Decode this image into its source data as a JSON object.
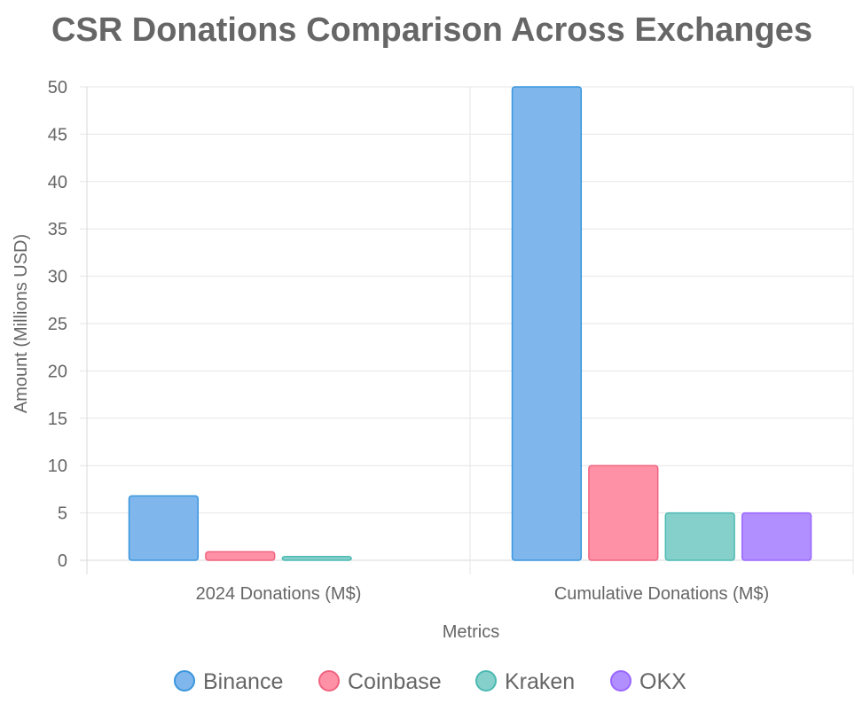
{
  "chart_data": {
    "type": "bar",
    "title": "CSR Donations Comparison Across Exchanges",
    "xlabel": "Metrics",
    "ylabel": "Amount (Millions USD)",
    "categories": [
      "2024 Donations (M$)",
      "Cumulative Donations (M$)"
    ],
    "ylim": [
      0,
      50
    ],
    "yticks": [
      0,
      5,
      10,
      15,
      20,
      25,
      30,
      35,
      40,
      45,
      50
    ],
    "grid": true,
    "legend_position": "bottom",
    "series": [
      {
        "name": "Binance",
        "values": [
          6.8,
          50
        ],
        "fill": "#7fb6ec",
        "stroke": "#3a96dd"
      },
      {
        "name": "Coinbase",
        "values": [
          0.9,
          10
        ],
        "fill": "#ff91a6",
        "stroke": "#f0637f"
      },
      {
        "name": "Kraken",
        "values": [
          0.4,
          5
        ],
        "fill": "#86d0cb",
        "stroke": "#4bbab2"
      },
      {
        "name": "OKX",
        "values": [
          null,
          5
        ],
        "fill": "#b18fff",
        "stroke": "#9a66ff"
      }
    ]
  }
}
